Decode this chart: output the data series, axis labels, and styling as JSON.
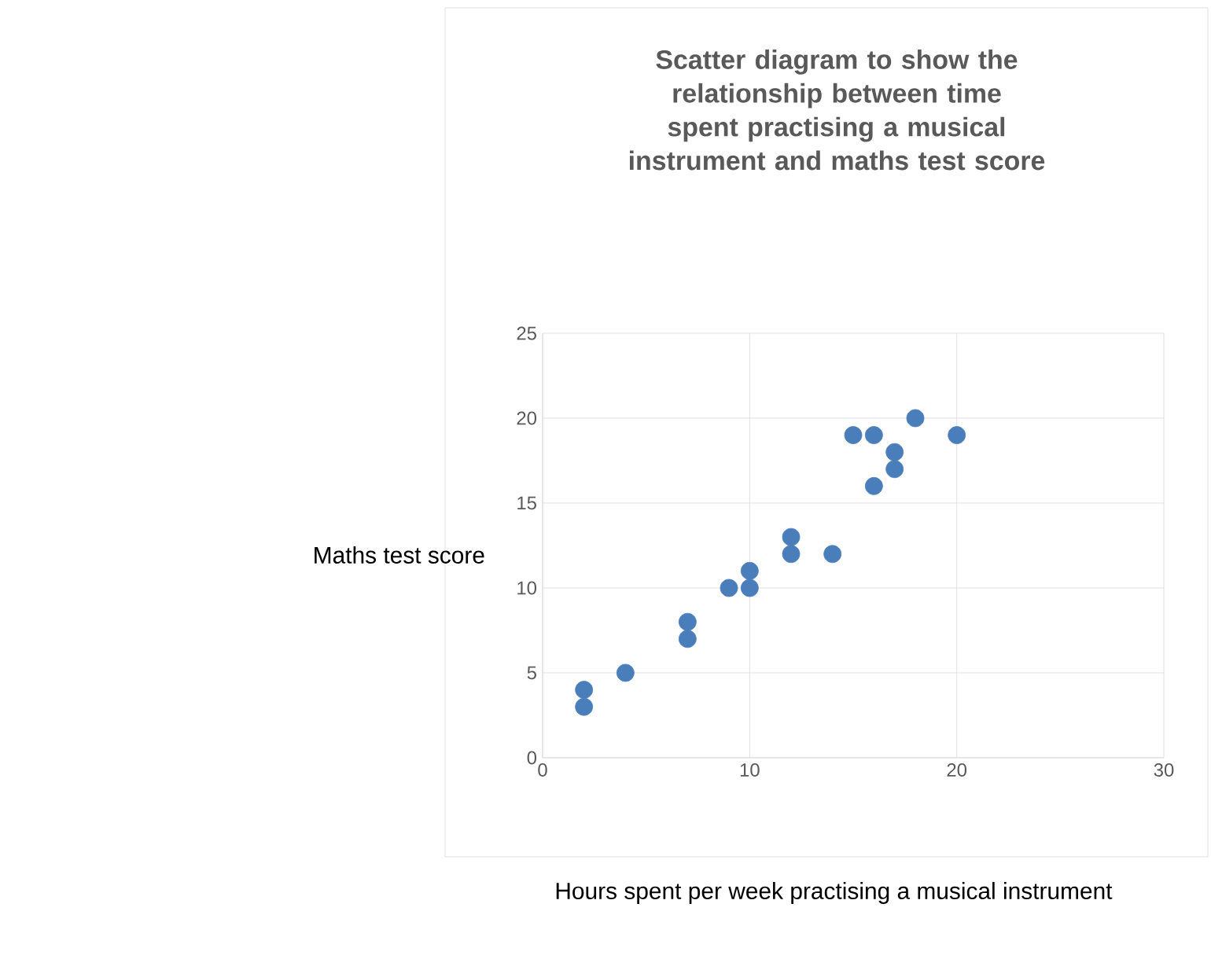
{
  "chart_data": {
    "type": "scatter",
    "title": "Scatter diagram to show the relationship between time spent practising a musical instrument and maths test score",
    "xlabel": "Hours spent per week practising a musical instrument",
    "ylabel": "Maths test score",
    "x": [
      2,
      2,
      4,
      7,
      7,
      9,
      10,
      10,
      12,
      12,
      14,
      15,
      16,
      16,
      17,
      17,
      18,
      20
    ],
    "values": [
      4,
      3,
      5,
      8,
      7,
      10,
      11,
      10,
      13,
      12,
      12,
      19,
      19,
      16,
      18,
      17,
      20,
      19
    ],
    "color": "#4a7ebb",
    "marker": "circle",
    "grid": true,
    "xlim": [
      0,
      30
    ],
    "xticks": [
      0,
      10,
      20,
      30
    ],
    "ylim": [
      0,
      25
    ],
    "yticks": [
      0,
      5,
      10,
      15,
      20,
      25
    ]
  }
}
